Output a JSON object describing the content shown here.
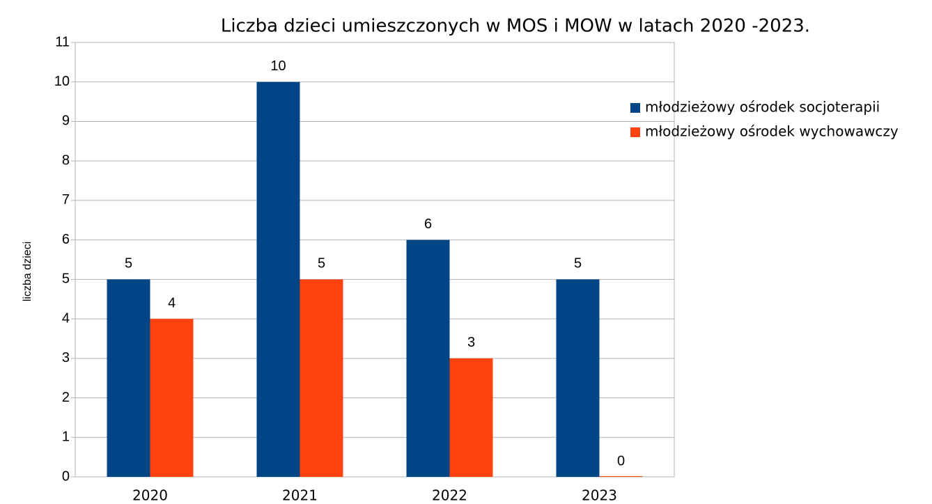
{
  "chart_data": {
    "type": "bar",
    "title": "Liczba dzieci umieszczonych w MOS i MOW w latach 2020 -2023.",
    "y_label": "liczba dzieci",
    "categories": [
      "2020",
      "2021",
      "2022",
      "2023"
    ],
    "series": [
      {
        "name": "młodzieżowy ośrodek socjoterapii",
        "color": "#004586",
        "values": [
          5,
          10,
          6,
          5
        ]
      },
      {
        "name": "młodzieżowy ośrodek wychowawczy",
        "color": "#ff420e",
        "values": [
          4,
          5,
          3,
          0
        ]
      }
    ],
    "ylim": [
      0,
      11
    ],
    "yticks": [
      0,
      1,
      2,
      3,
      4,
      5,
      6,
      7,
      8,
      9,
      10,
      11
    ],
    "grid": true,
    "legend": "right"
  }
}
